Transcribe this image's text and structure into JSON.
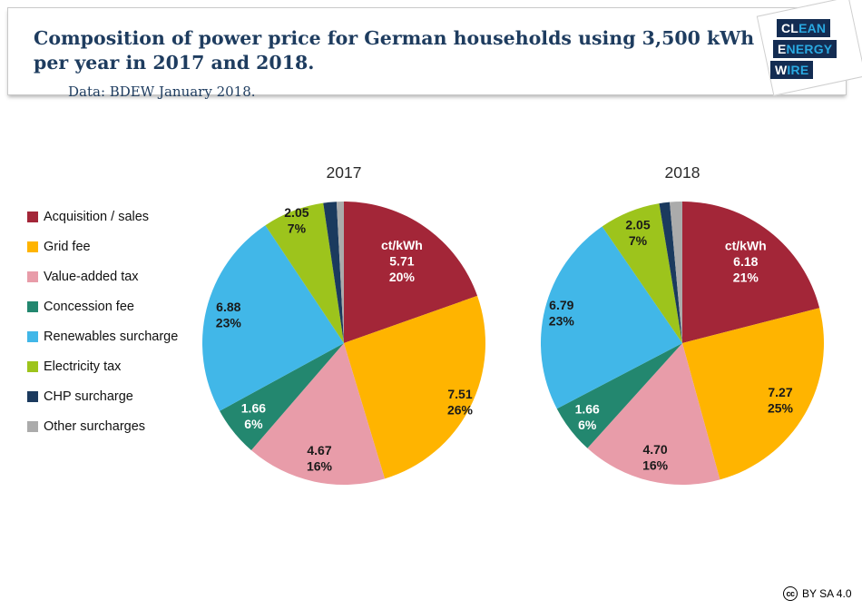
{
  "header": {
    "title": "Composition of power price for German households using 3,500 kWh per year in 2017 and 2018.",
    "subtitle": "Data: BDEW January 2018.",
    "title_color": "#1e3c5f"
  },
  "logo": {
    "name": "clean-energy-wire-logo",
    "bg_color": "#132c52",
    "cyan_color": "#29a8e0",
    "lines": [
      {
        "white": "CL",
        "cyan": "EAN"
      },
      {
        "white": "E",
        "cyan": "NERGY"
      },
      {
        "white": "W",
        "cyan": "IRE"
      }
    ]
  },
  "legend": {
    "items": [
      {
        "label": "Acquisition / sales",
        "color": "#a32638"
      },
      {
        "label": "Grid fee",
        "color": "#ffb400"
      },
      {
        "label": "Value-added tax",
        "color": "#e89ca9"
      },
      {
        "label": "Concession fee",
        "color": "#23876f"
      },
      {
        "label": "Renewables surcharge",
        "color": "#41b7e8"
      },
      {
        "label": "Electricity tax",
        "color": "#9dc41c"
      },
      {
        "label": "CHP surcharge",
        "color": "#1b3a5e"
      },
      {
        "label": "Other surcharges",
        "color": "#ababab"
      }
    ]
  },
  "chart_data": [
    {
      "type": "pie",
      "title": "2017",
      "unit": "ct/kWh",
      "legend_position": "left",
      "start_angle_deg": 0,
      "direction": "clockwise",
      "slices": [
        {
          "label": "Acquisition / sales",
          "value": 5.71,
          "value_text": "5.71",
          "percent_text": "20%",
          "color": "#a32638",
          "text_color": "#ffffff",
          "show_unit": true,
          "label_factor": 0.71
        },
        {
          "label": "Grid fee",
          "value": 7.51,
          "value_text": "7.51",
          "percent_text": "26%",
          "color": "#ffb400",
          "text_color": "#1a1a1a",
          "show_unit": false,
          "label_factor": 0.92
        },
        {
          "label": "Value-added tax",
          "value": 4.67,
          "value_text": "4.67",
          "percent_text": "16%",
          "color": "#e89ca9",
          "text_color": "#1a1a1a",
          "show_unit": false,
          "label_factor": 0.83
        },
        {
          "label": "Concession fee",
          "value": 1.66,
          "value_text": "1.66",
          "percent_text": "6%",
          "color": "#23876f",
          "text_color": "#ffffff",
          "show_unit": false,
          "label_factor": 0.82
        },
        {
          "label": "Renewables surcharge",
          "value": 6.88,
          "value_text": "6.88",
          "percent_text": "23%",
          "color": "#41b7e8",
          "text_color": "#1a1a1a",
          "show_unit": false,
          "label_factor": 0.84
        },
        {
          "label": "Electricity tax",
          "value": 2.05,
          "value_text": "2.05",
          "percent_text": "7%",
          "color": "#9dc41c",
          "text_color": "#1a1a1a",
          "show_unit": false,
          "label_factor": 0.93
        },
        {
          "label": "CHP surcharge",
          "value": 0.44,
          "color": "#1b3a5e",
          "label_visible": false,
          "estimated": true
        },
        {
          "label": "Other surcharges",
          "value": 0.24,
          "color": "#ababab",
          "label_visible": false,
          "estimated": true
        }
      ]
    },
    {
      "type": "pie",
      "title": "2018",
      "unit": "ct/kWh",
      "legend_position": "left",
      "start_angle_deg": 0,
      "direction": "clockwise",
      "slices": [
        {
          "label": "Acquisition / sales",
          "value": 6.18,
          "value_text": "6.18",
          "percent_text": "21%",
          "color": "#a32638",
          "text_color": "#ffffff",
          "show_unit": true,
          "label_factor": 0.73
        },
        {
          "label": "Grid fee",
          "value": 7.27,
          "value_text": "7.27",
          "percent_text": "25%",
          "color": "#ffb400",
          "text_color": "#1a1a1a",
          "show_unit": false,
          "label_factor": 0.8
        },
        {
          "label": "Value-added tax",
          "value": 4.7,
          "value_text": "4.70",
          "percent_text": "16%",
          "color": "#e89ca9",
          "text_color": "#1a1a1a",
          "show_unit": false,
          "label_factor": 0.83
        },
        {
          "label": "Concession fee",
          "value": 1.66,
          "value_text": "1.66",
          "percent_text": "6%",
          "color": "#23876f",
          "text_color": "#ffffff",
          "show_unit": false,
          "label_factor": 0.85
        },
        {
          "label": "Renewables surcharge",
          "value": 6.79,
          "value_text": "6.79",
          "percent_text": "23%",
          "color": "#41b7e8",
          "text_color": "#1a1a1a",
          "show_unit": false,
          "label_factor": 0.88
        },
        {
          "label": "Electricity tax",
          "value": 2.05,
          "value_text": "2.05",
          "percent_text": "7%",
          "color": "#9dc41c",
          "text_color": "#1a1a1a",
          "show_unit": false,
          "label_factor": 0.84
        },
        {
          "label": "CHP surcharge",
          "value": 0.35,
          "color": "#1b3a5e",
          "label_visible": false,
          "estimated": true
        },
        {
          "label": "Other surcharges",
          "value": 0.42,
          "color": "#ababab",
          "label_visible": false,
          "estimated": true
        }
      ]
    }
  ],
  "footer": {
    "cc_glyph": "cc",
    "license": "BY SA 4.0"
  }
}
